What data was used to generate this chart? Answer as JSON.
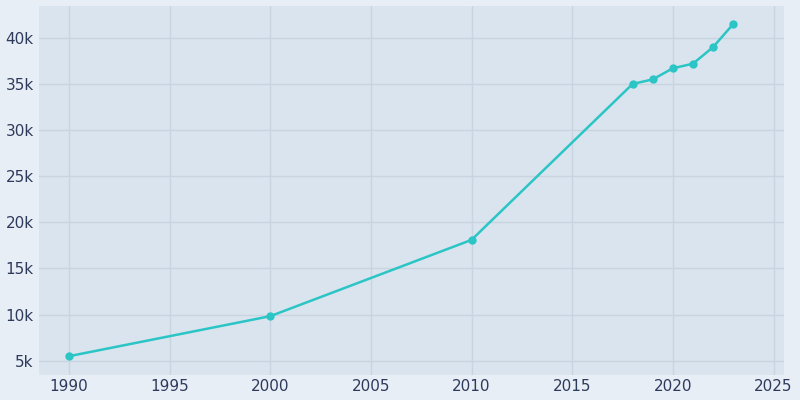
{
  "years": [
    1990,
    2000,
    2010,
    2018,
    2019,
    2020,
    2021,
    2022,
    2023
  ],
  "population": [
    5490,
    9830,
    18100,
    35000,
    35500,
    36700,
    37200,
    39000,
    41500
  ],
  "line_color": "#2BC5C5",
  "marker_color": "#2BC5C5",
  "outer_bg": "#E8EEF5",
  "plot_bg_color": "#DAE4EE",
  "text_color": "#2E3A5C",
  "grid_color": "#C8D4E0",
  "xlim": [
    1988.5,
    2025.5
  ],
  "ylim": [
    3500,
    43500
  ],
  "xticks": [
    1990,
    1995,
    2000,
    2005,
    2010,
    2015,
    2020,
    2025
  ],
  "yticks": [
    5000,
    10000,
    15000,
    20000,
    25000,
    30000,
    35000,
    40000
  ],
  "ytick_labels": [
    "5k",
    "10k",
    "15k",
    "20k",
    "25k",
    "30k",
    "35k",
    "40k"
  ],
  "figsize": [
    8.0,
    4.0
  ],
  "dpi": 100,
  "tick_fontsize": 11,
  "linewidth": 1.8,
  "markersize": 5
}
